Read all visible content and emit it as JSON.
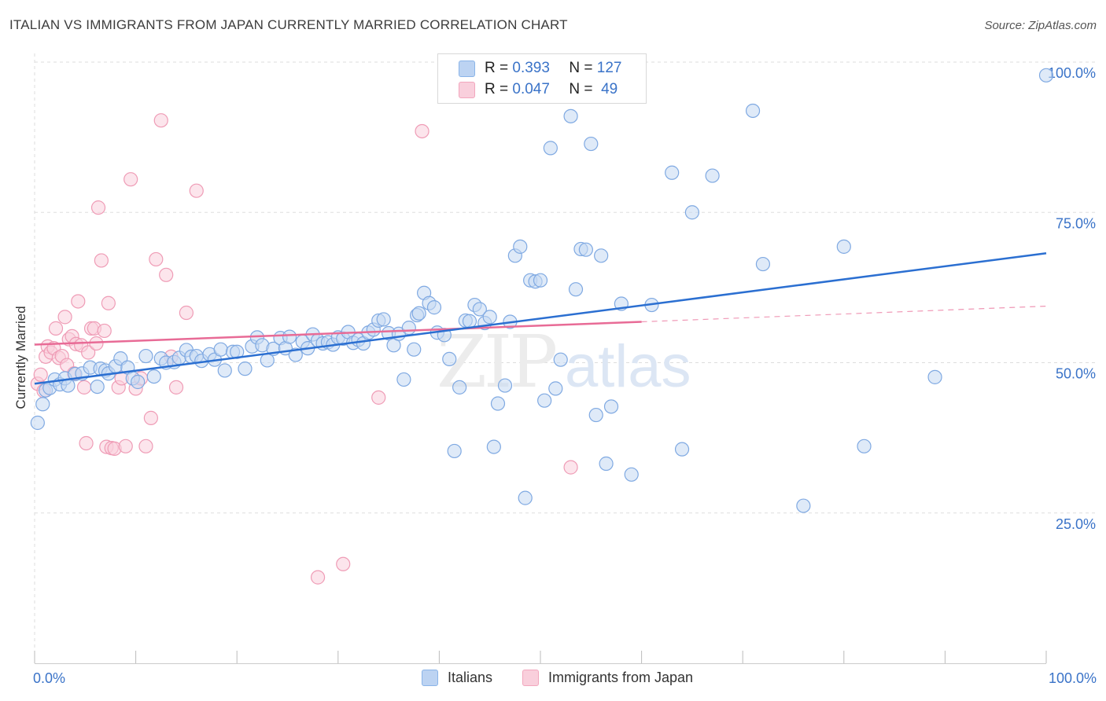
{
  "title": "ITALIAN VS IMMIGRANTS FROM JAPAN CURRENTLY MARRIED CORRELATION CHART",
  "source": "Source: ZipAtlas.com",
  "watermark": {
    "zip": "ZIP",
    "atlas": "atlas"
  },
  "colors": {
    "blue": "#8ab4e8",
    "blue_line": "#2b6fd1",
    "pink": "#f2a6bd",
    "pink_line": "#e86b96",
    "axis_text": "#3a73c8",
    "grid": "#dddddd"
  },
  "legend": {
    "rows": [
      {
        "r_label": "R =",
        "r_value": "0.393",
        "n_label": "N =",
        "n_value": "127"
      },
      {
        "r_label": "R =",
        "r_value": "0.047",
        "n_label": "N =",
        "n_value": "49"
      }
    ]
  },
  "chart_data": {
    "type": "scatter",
    "ylabel": "Currently Married",
    "x_tick_labels": [
      "0.0%",
      "100.0%"
    ],
    "y_tick_labels": [
      "25.0%",
      "50.0%",
      "75.0%",
      "100.0%"
    ],
    "xlim": [
      0,
      100
    ],
    "ylim": [
      0,
      100
    ],
    "y_ticks": [
      25,
      50,
      75,
      100
    ],
    "grid": true,
    "legend_position": "top-center",
    "series": [
      {
        "name": "Italians",
        "color": "#8ab4e8",
        "trend": [
          [
            0,
            46.5
          ],
          [
            100,
            68.2
          ]
        ],
        "points": [
          [
            0.3,
            40
          ],
          [
            0.8,
            43.1
          ],
          [
            1.1,
            45.4
          ],
          [
            1.5,
            45.8
          ],
          [
            2,
            47.2
          ],
          [
            2.5,
            46.4
          ],
          [
            3,
            47.4
          ],
          [
            3.3,
            46.2
          ],
          [
            4,
            48.1
          ],
          [
            4.7,
            48.2
          ],
          [
            5.5,
            49.2
          ],
          [
            6.2,
            46
          ],
          [
            6.5,
            49
          ],
          [
            7,
            48.7
          ],
          [
            7.3,
            48.2
          ],
          [
            8,
            49.4
          ],
          [
            8.5,
            50.7
          ],
          [
            9.2,
            49.2
          ],
          [
            9.7,
            47.4
          ],
          [
            10.2,
            46.8
          ],
          [
            11,
            51.1
          ],
          [
            11.8,
            47.7
          ],
          [
            12.5,
            50.7
          ],
          [
            13,
            50
          ],
          [
            13.8,
            50.1
          ],
          [
            14.3,
            50.8
          ],
          [
            15,
            52.1
          ],
          [
            15.5,
            51
          ],
          [
            16,
            51.1
          ],
          [
            16.5,
            50.3
          ],
          [
            17.3,
            51.4
          ],
          [
            17.8,
            50.5
          ],
          [
            18.4,
            52.2
          ],
          [
            18.8,
            48.7
          ],
          [
            19.6,
            51.8
          ],
          [
            20,
            51.8
          ],
          [
            20.8,
            49
          ],
          [
            21.5,
            52.7
          ],
          [
            22,
            54.2
          ],
          [
            22.5,
            52.9
          ],
          [
            23,
            50.4
          ],
          [
            23.6,
            52.3
          ],
          [
            24.3,
            54.1
          ],
          [
            24.8,
            52.4
          ],
          [
            25.2,
            54.3
          ],
          [
            25.8,
            51.3
          ],
          [
            26.5,
            53.5
          ],
          [
            27,
            52.4
          ],
          [
            27.5,
            54.7
          ],
          [
            28,
            53.7
          ],
          [
            28.5,
            53.2
          ],
          [
            29,
            53.4
          ],
          [
            29.5,
            53
          ],
          [
            30,
            54.2
          ],
          [
            30.5,
            54
          ],
          [
            31,
            55.1
          ],
          [
            31.5,
            53.3
          ],
          [
            32,
            53.8
          ],
          [
            32.5,
            53.2
          ],
          [
            33,
            55
          ],
          [
            33.5,
            55.5
          ],
          [
            34,
            57
          ],
          [
            34.5,
            57.2
          ],
          [
            35,
            54.9
          ],
          [
            35.5,
            52.9
          ],
          [
            36,
            54.8
          ],
          [
            36.5,
            47.2
          ],
          [
            37,
            55.8
          ],
          [
            37.5,
            52.2
          ],
          [
            37.8,
            57.9
          ],
          [
            38,
            58.2
          ],
          [
            38.5,
            61.6
          ],
          [
            39,
            59.9
          ],
          [
            39.5,
            59.2
          ],
          [
            39.8,
            55
          ],
          [
            40.5,
            54.6
          ],
          [
            41,
            50.6
          ],
          [
            41.5,
            35.3
          ],
          [
            42,
            45.9
          ],
          [
            42.6,
            57
          ],
          [
            43,
            56.9
          ],
          [
            43.5,
            59.6
          ],
          [
            44,
            58.9
          ],
          [
            44.5,
            56.6
          ],
          [
            45,
            57.6
          ],
          [
            45.4,
            36
          ],
          [
            45.8,
            43.2
          ],
          [
            46.5,
            46.2
          ],
          [
            47,
            56.8
          ],
          [
            47.5,
            67.8
          ],
          [
            48,
            69.3
          ],
          [
            48.5,
            27.5
          ],
          [
            49,
            63.7
          ],
          [
            49.5,
            63.5
          ],
          [
            50,
            63.7
          ],
          [
            50.4,
            43.7
          ],
          [
            51,
            85.7
          ],
          [
            51.5,
            45.7
          ],
          [
            52,
            50.5
          ],
          [
            53,
            91
          ],
          [
            53.5,
            62.2
          ],
          [
            54,
            68.9
          ],
          [
            54.5,
            68.8
          ],
          [
            55,
            86.4
          ],
          [
            55.5,
            41.3
          ],
          [
            56,
            67.8
          ],
          [
            56.5,
            33.2
          ],
          [
            57,
            42.7
          ],
          [
            58,
            59.8
          ],
          [
            59,
            31.4
          ],
          [
            61,
            59.6
          ],
          [
            63,
            81.6
          ],
          [
            64,
            35.6
          ],
          [
            65,
            75
          ],
          [
            67,
            81.1
          ],
          [
            71,
            91.9
          ],
          [
            72,
            66.4
          ],
          [
            76,
            26.2
          ],
          [
            80,
            69.3
          ],
          [
            82,
            36.1
          ],
          [
            89,
            47.6
          ],
          [
            100,
            97.8
          ]
        ]
      },
      {
        "name": "Immigrants from Japan",
        "color": "#f2a6bd",
        "trend": [
          [
            0,
            53
          ],
          [
            60,
            56.8
          ]
        ],
        "trend_dashed": [
          [
            60,
            56.8
          ],
          [
            100,
            59.4
          ]
        ],
        "points": [
          [
            0.3,
            46.5
          ],
          [
            0.6,
            48
          ],
          [
            0.9,
            45.3
          ],
          [
            1.1,
            51
          ],
          [
            1.3,
            52.7
          ],
          [
            1.6,
            51.7
          ],
          [
            1.9,
            52.4
          ],
          [
            2.1,
            55.7
          ],
          [
            2.4,
            50.8
          ],
          [
            2.7,
            51.1
          ],
          [
            3,
            57.6
          ],
          [
            3.2,
            49.6
          ],
          [
            3.4,
            53.9
          ],
          [
            3.7,
            54.4
          ],
          [
            3.9,
            48.2
          ],
          [
            4.1,
            53.1
          ],
          [
            4.3,
            60.2
          ],
          [
            4.6,
            52.9
          ],
          [
            4.9,
            45.9
          ],
          [
            5.1,
            36.6
          ],
          [
            5.3,
            51.7
          ],
          [
            5.6,
            55.7
          ],
          [
            5.9,
            55.7
          ],
          [
            6.1,
            53.2
          ],
          [
            6.3,
            75.8
          ],
          [
            6.6,
            67
          ],
          [
            6.9,
            55.3
          ],
          [
            7.1,
            36
          ],
          [
            7.3,
            59.9
          ],
          [
            7.6,
            35.8
          ],
          [
            7.9,
            35.7
          ],
          [
            8.3,
            45.9
          ],
          [
            8.6,
            47.4
          ],
          [
            9,
            36.1
          ],
          [
            9.5,
            80.5
          ],
          [
            10,
            45.7
          ],
          [
            10.5,
            47.4
          ],
          [
            11,
            36.1
          ],
          [
            11.5,
            40.8
          ],
          [
            12,
            67.2
          ],
          [
            12.5,
            90.3
          ],
          [
            13,
            64.6
          ],
          [
            13.5,
            51
          ],
          [
            14,
            45.9
          ],
          [
            15,
            58.3
          ],
          [
            16,
            78.6
          ],
          [
            28,
            14.3
          ],
          [
            30.5,
            16.5
          ],
          [
            34,
            44.2
          ],
          [
            38.3,
            88.5
          ],
          [
            53,
            32.6
          ]
        ]
      }
    ]
  }
}
